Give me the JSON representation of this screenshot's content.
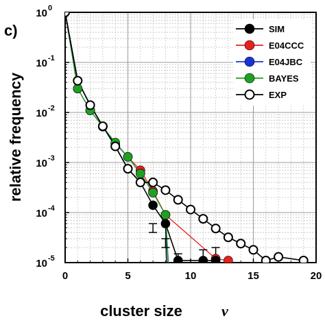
{
  "chart_data": {
    "type": "scatter",
    "panel_label": "c)",
    "xlabel": "cluster size",
    "xlabel_symbol": "ν",
    "ylabel": "relative frequency",
    "xlim": [
      0,
      20
    ],
    "ylim_log10": [
      -5,
      0
    ],
    "y_scale": "log",
    "x_ticks": [
      0,
      5,
      10,
      15,
      20
    ],
    "y_tick_mantissa": "10",
    "y_tick_exponents": [
      "0",
      "-1",
      "-2",
      "-3",
      "-4",
      "-5"
    ],
    "grid": true,
    "legend_position": "top-right",
    "series": [
      {
        "name": "SIM",
        "color": "#000000",
        "marker": "filled",
        "points": [
          [
            0,
            1.0
          ],
          [
            1,
            0.043
          ],
          [
            2,
            0.014
          ],
          [
            3,
            0.0053
          ],
          [
            4,
            0.0021
          ],
          [
            5,
            0.00075
          ],
          [
            6,
            0.0004
          ],
          [
            7,
            0.00014
          ],
          [
            8,
            6e-05
          ],
          [
            9,
            1.1e-05
          ],
          [
            11,
            1.1e-05
          ],
          [
            12,
            1.1e-05
          ]
        ],
        "errors_up": [
          null,
          null,
          null,
          null,
          null,
          null,
          null,
          6e-05,
          3e-05,
          1.5e-05,
          1.8e-05,
          2e-05
        ],
        "errors_down": [
          null,
          null,
          null,
          null,
          null,
          null,
          null,
          4e-05,
          2e-05,
          null,
          null,
          null
        ]
      },
      {
        "name": "E04CCC",
        "color": "#e8201c",
        "marker": "filled",
        "points": [
          [
            0,
            1.0
          ],
          [
            1,
            0.03
          ],
          [
            2,
            0.011
          ],
          [
            3,
            0.0052
          ],
          [
            4,
            0.0024
          ],
          [
            5,
            0.0013
          ],
          [
            6,
            0.0007
          ],
          [
            7,
            0.00027
          ],
          [
            8,
            9e-05
          ],
          [
            12,
            1.2e-05
          ],
          [
            13,
            1.1e-05
          ]
        ]
      },
      {
        "name": "E04JBC",
        "color": "#1a33d6",
        "marker": "filled",
        "points": [
          [
            0,
            1.0
          ],
          [
            1,
            0.03
          ],
          [
            2,
            0.011
          ],
          [
            3,
            0.0052
          ],
          [
            4,
            0.0024
          ],
          [
            5,
            0.0013
          ],
          [
            6,
            0.0006
          ],
          [
            7,
            0.00025
          ],
          [
            8,
            9e-05
          ]
        ]
      },
      {
        "name": "BAYES",
        "color": "#1fa023",
        "marker": "filled",
        "points": [
          [
            0,
            1.0
          ],
          [
            1,
            0.03
          ],
          [
            2,
            0.011
          ],
          [
            3,
            0.0052
          ],
          [
            4,
            0.0025
          ],
          [
            5,
            0.0013
          ],
          [
            6,
            0.0006
          ],
          [
            7,
            0.00025
          ],
          [
            8,
            9e-05
          ]
        ]
      },
      {
        "name": "EXP",
        "color": "#000000",
        "marker": "open",
        "points": [
          [
            0,
            1.0
          ],
          [
            1,
            0.043
          ],
          [
            2,
            0.014
          ],
          [
            3,
            0.0053
          ],
          [
            4,
            0.0021
          ],
          [
            5,
            0.00075
          ],
          [
            6,
            0.0004
          ],
          [
            7,
            0.0004
          ],
          [
            8,
            0.00028
          ],
          [
            9,
            0.00018
          ],
          [
            10,
            0.000115
          ],
          [
            11,
            7.5e-05
          ],
          [
            12,
            4.8e-05
          ],
          [
            13,
            3.2e-05
          ],
          [
            14,
            2.4e-05
          ],
          [
            15,
            1.8e-05
          ],
          [
            16,
            1.1e-05
          ],
          [
            17,
            1.3e-05
          ],
          [
            19,
            1.1e-05
          ]
        ],
        "errors_up": [
          null,
          null,
          null,
          null,
          null,
          null,
          null,
          null,
          null,
          null,
          null,
          null,
          null,
          null,
          null,
          null,
          null,
          1.45e-05,
          1.15e-05
        ],
        "errors_down": [
          null,
          null,
          null,
          null,
          null,
          null,
          null,
          null,
          null,
          null,
          null,
          null,
          null,
          null,
          null,
          null,
          null,
          1.15e-05,
          1.05e-05
        ]
      }
    ],
    "drop_lines": [
      {
        "series": "E04JBC",
        "from": [
          8,
          9e-05
        ],
        "to_x": 8.25
      },
      {
        "series": "BAYES",
        "from": [
          8,
          9e-05
        ],
        "to_x": 8.3
      },
      {
        "series": "SIM",
        "from": [
          8,
          6e-05
        ],
        "to_x": 8.1
      }
    ]
  }
}
